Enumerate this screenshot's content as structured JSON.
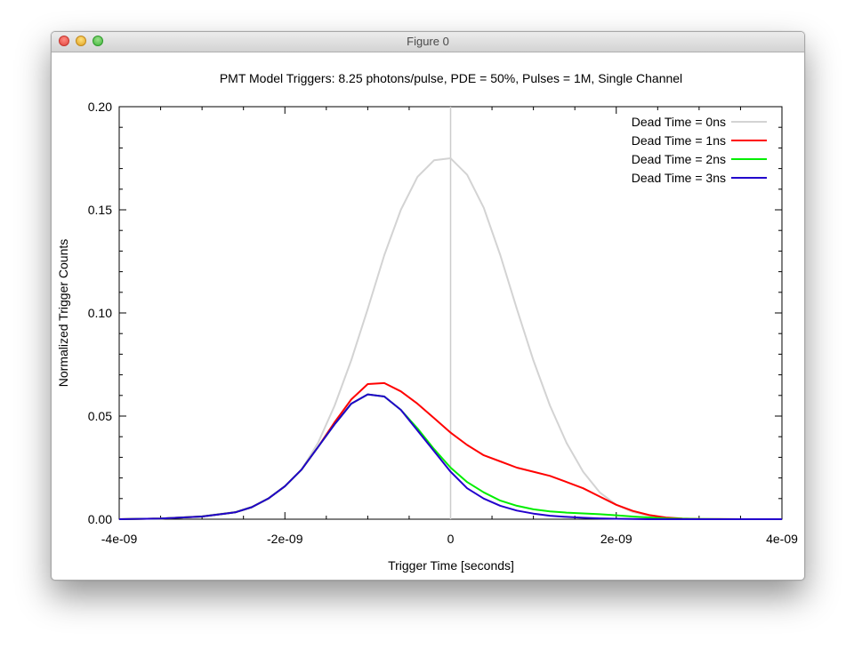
{
  "window": {
    "title": "Figure 0"
  },
  "chart_data": {
    "type": "line",
    "title": "PMT Model Triggers: 8.25 photons/pulse, PDE = 50%, Pulses = 1M, Single Channel",
    "xlabel": "Trigger Time [seconds]",
    "ylabel": "Normalized Trigger Counts",
    "xlim": [
      -4e-09,
      4e-09
    ],
    "ylim": [
      0,
      0.2
    ],
    "x_ticks": [
      {
        "value": -4e-09,
        "label": "-4e-09"
      },
      {
        "value": -2e-09,
        "label": "-2e-09"
      },
      {
        "value": 0,
        "label": "0"
      },
      {
        "value": 2e-09,
        "label": "2e-09"
      },
      {
        "value": 4e-09,
        "label": "4e-09"
      }
    ],
    "y_ticks": [
      {
        "value": 0,
        "label": "0.00"
      },
      {
        "value": 0.05,
        "label": "0.05"
      },
      {
        "value": 0.1,
        "label": "0.10"
      },
      {
        "value": 0.15,
        "label": "0.15"
      },
      {
        "value": 0.2,
        "label": "0.20"
      }
    ],
    "vertical_line_x": 0,
    "vertical_line_color": "#cccccc",
    "legend_position": "top-right",
    "x": [
      -4e-09,
      -3.5e-09,
      -3e-09,
      -2.6e-09,
      -2.4e-09,
      -2.2e-09,
      -2e-09,
      -1.8e-09,
      -1.6e-09,
      -1.4e-09,
      -1.2e-09,
      -1e-09,
      -8e-10,
      -6e-10,
      -4e-10,
      -2e-10,
      0,
      2e-10,
      4e-10,
      6e-10,
      8e-10,
      1e-09,
      1.2e-09,
      1.4e-09,
      1.6e-09,
      1.8e-09,
      2e-09,
      2.2e-09,
      2.4e-09,
      2.6e-09,
      2.8e-09,
      3e-09,
      3.5e-09,
      4e-09
    ],
    "series": [
      {
        "name": "Dead Time = 0ns",
        "color": "#d3d3d3",
        "values": [
          0.0,
          0.0003,
          0.0015,
          0.0035,
          0.006,
          0.01,
          0.016,
          0.024,
          0.037,
          0.055,
          0.077,
          0.102,
          0.128,
          0.15,
          0.166,
          0.174,
          0.175,
          0.167,
          0.151,
          0.128,
          0.102,
          0.077,
          0.055,
          0.037,
          0.023,
          0.013,
          0.007,
          0.0035,
          0.0015,
          0.0006,
          0.0002,
          0.0001,
          0.0,
          0.0
        ]
      },
      {
        "name": "Dead Time = 1ns",
        "color": "#ff0000",
        "values": [
          0.0,
          0.0003,
          0.0013,
          0.0033,
          0.0058,
          0.01,
          0.016,
          0.024,
          0.035,
          0.047,
          0.058,
          0.0655,
          0.066,
          0.062,
          0.056,
          0.049,
          0.042,
          0.036,
          0.031,
          0.028,
          0.025,
          0.023,
          0.021,
          0.018,
          0.015,
          0.011,
          0.007,
          0.004,
          0.002,
          0.0008,
          0.0003,
          0.0001,
          0.0,
          0.0
        ]
      },
      {
        "name": "Dead Time = 2ns",
        "color": "#00ee00",
        "values": [
          0.0,
          0.0003,
          0.0013,
          0.0033,
          0.0058,
          0.01,
          0.016,
          0.024,
          0.035,
          0.046,
          0.056,
          0.0605,
          0.0595,
          0.053,
          0.044,
          0.034,
          0.025,
          0.018,
          0.013,
          0.009,
          0.0065,
          0.0048,
          0.0038,
          0.0032,
          0.0028,
          0.0024,
          0.0019,
          0.0013,
          0.0008,
          0.0004,
          0.0002,
          0.0001,
          0.0,
          0.0
        ]
      },
      {
        "name": "Dead Time = 3ns",
        "color": "#2200cc",
        "values": [
          0.0,
          0.0003,
          0.0013,
          0.0033,
          0.0058,
          0.01,
          0.016,
          0.024,
          0.035,
          0.046,
          0.056,
          0.0605,
          0.0595,
          0.053,
          0.043,
          0.033,
          0.023,
          0.015,
          0.01,
          0.0065,
          0.0042,
          0.0027,
          0.0017,
          0.0011,
          0.0007,
          0.0004,
          0.0002,
          0.0001,
          0.0,
          0.0,
          0.0,
          0.0,
          0.0,
          0.0
        ]
      }
    ]
  }
}
